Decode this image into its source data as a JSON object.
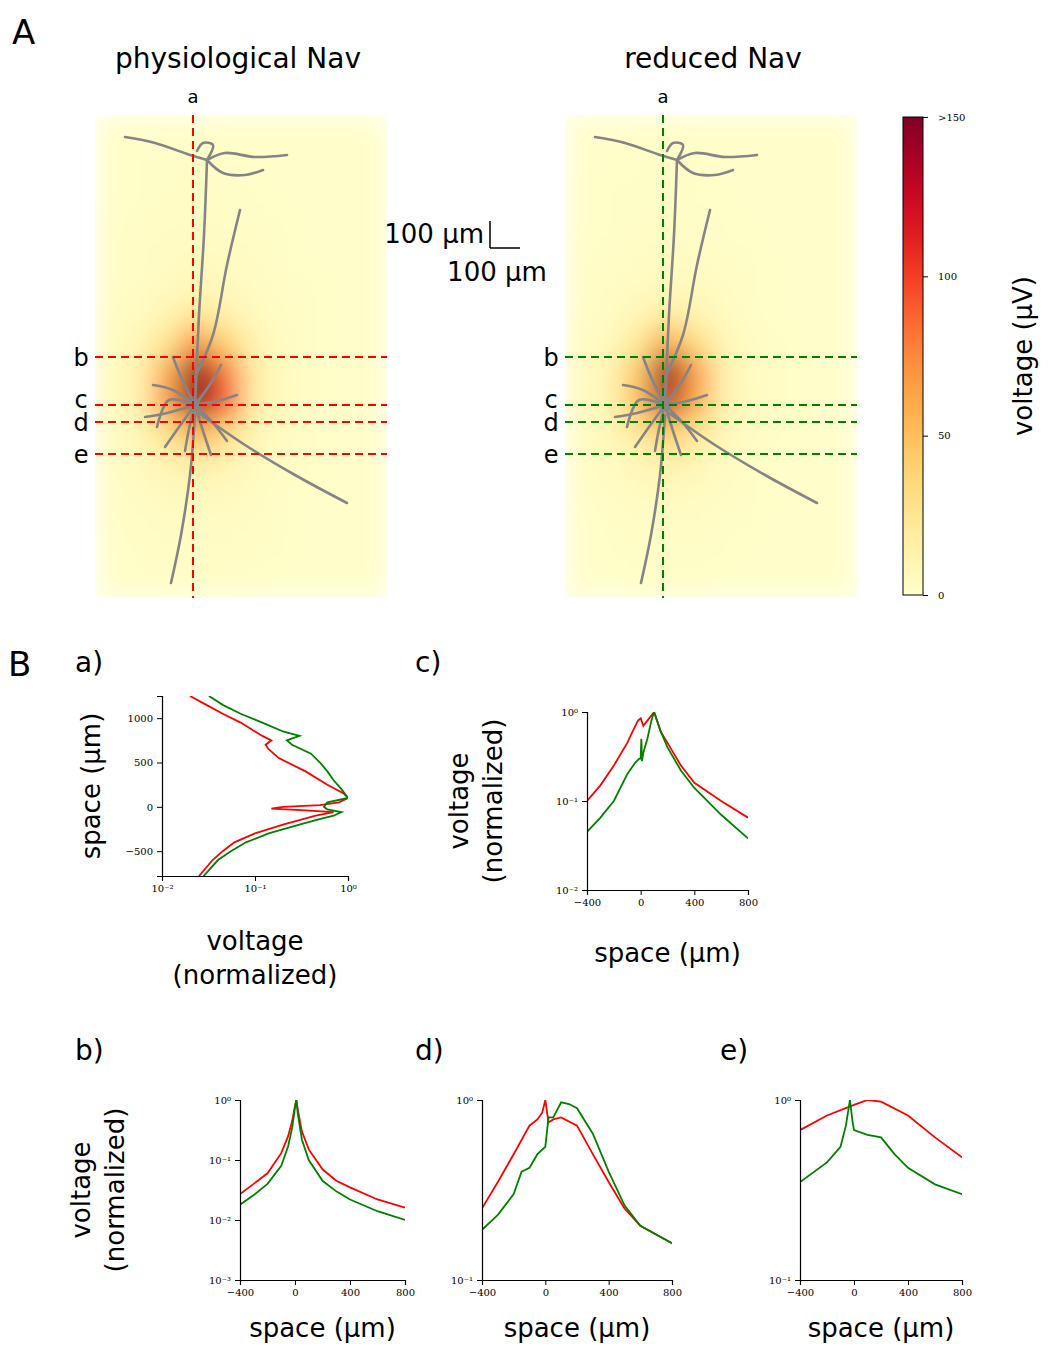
{
  "panel_labels": [
    "A",
    "B"
  ],
  "scale_bar": {
    "vertical": "100 µm",
    "horizontal": "100 µm"
  },
  "colorbar": {
    "zlim": [
      0,
      150
    ],
    "zticks": [
      0,
      50,
      100,
      {
        "value": 150,
        "label": ">150"
      }
    ],
    "label": "voltage (µV)"
  },
  "chart_data": [
    {
      "type": "heatmap",
      "title": "physiological Nav",
      "color": "red",
      "transects": [
        "a",
        "b",
        "c",
        "d",
        "e"
      ],
      "z": [
        [
          1,
          1,
          1,
          1,
          1,
          1,
          1,
          1,
          1,
          1
        ],
        [
          1,
          2,
          2,
          2,
          2,
          1,
          1,
          1,
          1,
          1
        ],
        [
          1,
          2,
          2,
          3,
          2,
          2,
          1,
          1,
          1,
          1
        ],
        [
          2,
          2,
          3,
          3,
          3,
          2,
          2,
          1,
          1,
          1
        ],
        [
          2,
          3,
          4,
          5,
          4,
          3,
          2,
          1,
          1,
          1
        ],
        [
          2,
          3,
          5,
          8,
          6,
          4,
          2,
          2,
          1,
          1
        ],
        [
          3,
          5,
          10,
          18,
          12,
          6,
          3,
          2,
          1,
          1
        ],
        [
          4,
          8,
          25,
          70,
          35,
          10,
          4,
          2,
          1,
          1
        ],
        [
          5,
          12,
          60,
          150,
          80,
          15,
          5,
          2,
          1,
          1
        ],
        [
          5,
          12,
          70,
          150,
          90,
          15,
          5,
          2,
          1,
          1
        ],
        [
          4,
          10,
          30,
          60,
          35,
          10,
          4,
          2,
          1,
          1
        ],
        [
          3,
          6,
          12,
          18,
          12,
          6,
          3,
          2,
          1,
          1
        ],
        [
          2,
          4,
          6,
          7,
          6,
          4,
          2,
          1,
          1,
          1
        ],
        [
          2,
          3,
          4,
          4,
          4,
          3,
          2,
          1,
          1,
          1
        ],
        [
          1,
          2,
          3,
          3,
          3,
          2,
          2,
          1,
          1,
          1
        ],
        [
          1,
          2,
          2,
          2,
          2,
          2,
          1,
          1,
          1,
          1
        ]
      ]
    },
    {
      "type": "heatmap",
      "title": "reduced Nav",
      "color": "green",
      "transects": [
        "a",
        "b",
        "c",
        "d",
        "e"
      ],
      "z": [
        [
          1,
          1,
          1,
          1,
          1,
          1,
          1,
          1,
          1,
          1
        ],
        [
          1,
          1,
          2,
          2,
          2,
          1,
          1,
          1,
          1,
          1
        ],
        [
          1,
          2,
          2,
          2,
          2,
          1,
          1,
          1,
          1,
          1
        ],
        [
          1,
          2,
          2,
          3,
          2,
          2,
          1,
          1,
          1,
          1
        ],
        [
          2,
          2,
          3,
          4,
          3,
          2,
          2,
          1,
          1,
          1
        ],
        [
          2,
          3,
          4,
          6,
          5,
          3,
          2,
          1,
          1,
          1
        ],
        [
          2,
          4,
          8,
          15,
          10,
          5,
          2,
          1,
          1,
          1
        ],
        [
          3,
          6,
          20,
          60,
          30,
          8,
          3,
          2,
          1,
          1
        ],
        [
          4,
          10,
          45,
          150,
          65,
          12,
          4,
          2,
          1,
          1
        ],
        [
          4,
          10,
          50,
          130,
          60,
          12,
          4,
          2,
          1,
          1
        ],
        [
          3,
          8,
          22,
          45,
          25,
          8,
          3,
          2,
          1,
          1
        ],
        [
          2,
          5,
          9,
          14,
          10,
          5,
          2,
          1,
          1,
          1
        ],
        [
          2,
          3,
          5,
          6,
          5,
          3,
          2,
          1,
          1,
          1
        ],
        [
          1,
          2,
          3,
          3,
          3,
          2,
          2,
          1,
          1,
          1
        ],
        [
          1,
          2,
          2,
          2,
          2,
          2,
          1,
          1,
          1,
          1
        ],
        [
          1,
          1,
          2,
          2,
          2,
          1,
          1,
          1,
          1,
          1
        ]
      ]
    },
    {
      "type": "line",
      "title": "a)",
      "orientation": "horizontal",
      "log": "y",
      "xlabel": "space (µm)",
      "ylabel": "voltage (normalized)",
      "xlim": [
        -780,
        1250
      ],
      "xticks": [
        {
          "value": -500,
          "label": "−500"
        },
        0,
        500,
        1000
      ],
      "ylim": [
        0.01,
        1
      ],
      "yticks": [
        {
          "value": 0.01,
          "label": "10⁻²"
        },
        {
          "value": 0.1,
          "label": "10⁻¹"
        },
        {
          "value": 1,
          "label": "10⁰"
        }
      ],
      "series": [
        {
          "color": "red",
          "x": [
            -780,
            -600,
            -500,
            -400,
            -300,
            -200,
            -150,
            -100,
            -60,
            -40,
            -20,
            0,
            20,
            50,
            100,
            150,
            250,
            400,
            550,
            650,
            700,
            750,
            800,
            850,
            950,
            1050,
            1150,
            1250
          ],
          "values": [
            0.025,
            0.035,
            0.045,
            0.06,
            0.1,
            0.2,
            0.3,
            0.45,
            0.7,
            0.35,
            0.15,
            0.2,
            0.5,
            0.8,
            1.0,
            0.9,
            0.6,
            0.35,
            0.18,
            0.14,
            0.13,
            0.15,
            0.12,
            0.1,
            0.07,
            0.045,
            0.03,
            0.02
          ]
        },
        {
          "color": "green",
          "x": [
            -780,
            -600,
            -500,
            -400,
            -300,
            -200,
            -150,
            -100,
            -60,
            -30,
            0,
            50,
            100,
            200,
            300,
            400,
            500,
            600,
            700,
            750,
            800,
            850,
            950,
            1050,
            1150,
            1250
          ],
          "values": [
            0.028,
            0.04,
            0.055,
            0.08,
            0.14,
            0.3,
            0.45,
            0.7,
            0.85,
            0.6,
            0.55,
            0.6,
            1.0,
            0.85,
            0.7,
            0.6,
            0.5,
            0.4,
            0.25,
            0.22,
            0.3,
            0.2,
            0.12,
            0.07,
            0.045,
            0.032
          ]
        }
      ]
    },
    {
      "type": "line",
      "title": "b)",
      "log": "y",
      "xlabel": "space (µm)",
      "ylabel": "voltage (normalized)",
      "xlim": [
        -400,
        800
      ],
      "xticks": [
        {
          "value": -400,
          "label": "−400"
        },
        0,
        400,
        800
      ],
      "ylim": [
        0.001,
        1
      ],
      "yticks": [
        {
          "value": 0.001,
          "label": "10⁻³"
        },
        {
          "value": 0.01,
          "label": "10⁻²"
        },
        {
          "value": 0.1,
          "label": "10⁻¹"
        },
        {
          "value": 1,
          "label": "10⁰"
        }
      ],
      "series": [
        {
          "color": "red",
          "x": [
            -400,
            -300,
            -200,
            -100,
            -50,
            -20,
            0,
            10,
            20,
            50,
            100,
            200,
            300,
            400,
            600,
            800
          ],
          "values": [
            0.027,
            0.04,
            0.06,
            0.13,
            0.25,
            0.45,
            0.8,
            1.0,
            0.7,
            0.3,
            0.15,
            0.07,
            0.045,
            0.035,
            0.022,
            0.016
          ]
        },
        {
          "color": "green",
          "x": [
            -400,
            -300,
            -200,
            -100,
            -50,
            -20,
            0,
            10,
            20,
            50,
            100,
            200,
            300,
            400,
            600,
            800
          ],
          "values": [
            0.018,
            0.026,
            0.04,
            0.08,
            0.17,
            0.35,
            0.75,
            1.0,
            0.6,
            0.22,
            0.1,
            0.045,
            0.03,
            0.022,
            0.014,
            0.01
          ]
        }
      ]
    },
    {
      "type": "line",
      "title": "c)",
      "log": "y",
      "xlabel": "space (µm)",
      "ylabel": "voltage (normalized)",
      "xlim": [
        -400,
        800
      ],
      "xticks": [
        {
          "value": -400,
          "label": "−400"
        },
        0,
        400,
        800
      ],
      "ylim": [
        0.01,
        1
      ],
      "yticks": [
        {
          "value": 0.01,
          "label": "10⁻²"
        },
        {
          "value": 0.1,
          "label": "10⁻¹"
        },
        {
          "value": 1,
          "label": "10⁰"
        }
      ],
      "series": [
        {
          "color": "red",
          "x": [
            -400,
            -300,
            -200,
            -100,
            -50,
            -20,
            0,
            20,
            50,
            100,
            150,
            200,
            300,
            400,
            600,
            800
          ],
          "values": [
            0.1,
            0.15,
            0.25,
            0.45,
            0.65,
            0.8,
            0.85,
            0.7,
            0.8,
            1.0,
            0.6,
            0.45,
            0.25,
            0.16,
            0.1,
            0.065
          ]
        },
        {
          "color": "green",
          "x": [
            -400,
            -300,
            -200,
            -100,
            -40,
            -10,
            0,
            5,
            10,
            20,
            50,
            80,
            100,
            150,
            200,
            300,
            400,
            600,
            800
          ],
          "values": [
            0.045,
            0.065,
            0.1,
            0.2,
            0.27,
            0.3,
            0.3,
            0.5,
            0.28,
            0.35,
            0.5,
            0.8,
            1.0,
            0.6,
            0.4,
            0.22,
            0.14,
            0.07,
            0.038
          ]
        }
      ]
    },
    {
      "type": "line",
      "title": "d)",
      "log": "y",
      "xlabel": "space (µm)",
      "xlim": [
        -400,
        800
      ],
      "xticks": [
        {
          "value": -400,
          "label": "−400"
        },
        0,
        400,
        800
      ],
      "ylim": [
        0.1,
        1
      ],
      "yticks": [
        {
          "value": 0.1,
          "label": "10⁻¹"
        },
        {
          "value": 1,
          "label": "10⁰"
        }
      ],
      "series": [
        {
          "color": "red",
          "x": [
            -400,
            -300,
            -200,
            -100,
            -50,
            -20,
            0,
            20,
            50,
            100,
            200,
            300,
            400,
            500,
            600,
            800
          ],
          "values": [
            0.25,
            0.35,
            0.5,
            0.72,
            0.78,
            0.85,
            1.0,
            0.75,
            0.78,
            0.8,
            0.72,
            0.5,
            0.35,
            0.25,
            0.2,
            0.16
          ]
        },
        {
          "color": "green",
          "x": [
            -400,
            -300,
            -200,
            -150,
            -100,
            -50,
            0,
            20,
            50,
            100,
            150,
            200,
            300,
            400,
            500,
            600,
            800
          ],
          "values": [
            0.19,
            0.23,
            0.3,
            0.4,
            0.42,
            0.5,
            0.55,
            0.8,
            0.8,
            0.97,
            0.95,
            0.9,
            0.65,
            0.4,
            0.26,
            0.2,
            0.16
          ]
        }
      ]
    },
    {
      "type": "line",
      "title": "e)",
      "log": "y",
      "xlabel": "space (µm)",
      "xlim": [
        -400,
        800
      ],
      "xticks": [
        {
          "value": -400,
          "label": "−400"
        },
        0,
        400,
        800
      ],
      "ylim": [
        0.1,
        1
      ],
      "yticks": [
        {
          "value": 0.1,
          "label": "10⁻¹"
        },
        {
          "value": 1,
          "label": "10⁰"
        }
      ],
      "series": [
        {
          "color": "red",
          "x": [
            -400,
            -200,
            0,
            100,
            200,
            400,
            600,
            800
          ],
          "values": [
            0.68,
            0.82,
            0.94,
            1.0,
            0.98,
            0.82,
            0.62,
            0.48
          ]
        },
        {
          "color": "green",
          "x": [
            -400,
            -200,
            -100,
            -60,
            -30,
            -10,
            0,
            100,
            200,
            300,
            400,
            600,
            800
          ],
          "values": [
            0.35,
            0.45,
            0.55,
            0.72,
            1.0,
            0.75,
            0.68,
            0.64,
            0.62,
            0.5,
            0.42,
            0.34,
            0.3
          ]
        }
      ]
    }
  ]
}
